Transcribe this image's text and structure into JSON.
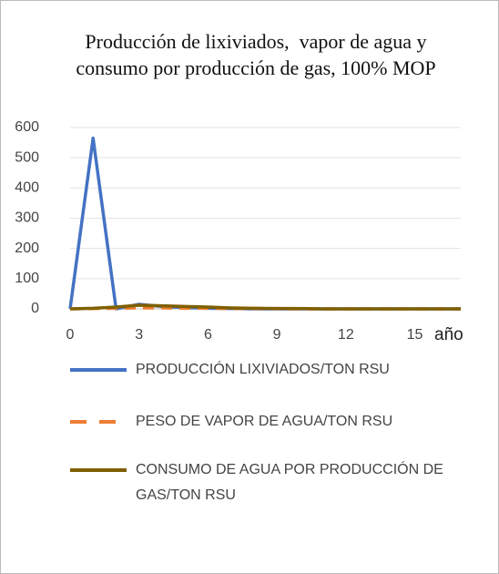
{
  "chart_data": {
    "type": "line",
    "title": "Producción de lixiviados,  vapor de agua y consumo por producción de gas, 100% MOP",
    "x_label": "año",
    "x": [
      0,
      1,
      2,
      3,
      4,
      5,
      6,
      7,
      8,
      9,
      10,
      11,
      12,
      13,
      14,
      15,
      16,
      17
    ],
    "xlim": [
      0,
      17
    ],
    "xticks": [
      0,
      3,
      6,
      9,
      12,
      15
    ],
    "ylim": [
      0,
      600
    ],
    "yticks": [
      0,
      100,
      200,
      300,
      400,
      500,
      600
    ],
    "grid": true,
    "legend": "bottom",
    "series": [
      {
        "name": "PRODUCCIÓN LIXIVIADOS/TON RSU",
        "color": "#4472c4",
        "dash": "solid",
        "values": [
          0,
          565,
          0,
          15,
          8,
          4,
          2,
          1,
          0,
          0,
          0,
          0,
          0,
          0,
          0,
          0,
          0,
          0
        ]
      },
      {
        "name": "PESO DE VAPOR DE AGUA/TON RSU",
        "color": "#ed7d31",
        "dash": "dashed",
        "values": [
          0,
          1,
          2,
          3,
          3,
          2,
          2,
          1,
          1,
          1,
          0,
          0,
          0,
          0,
          0,
          0,
          0,
          0
        ]
      },
      {
        "name": "CONSUMO DE AGUA POR PRODUCCIÓN DE GAS/TON RSU",
        "color": "#7f6000",
        "dash": "solid",
        "values": [
          0,
          2,
          6,
          12,
          10,
          8,
          6,
          3,
          2,
          1,
          1,
          0,
          0,
          0,
          0,
          0,
          0,
          0
        ]
      }
    ]
  }
}
